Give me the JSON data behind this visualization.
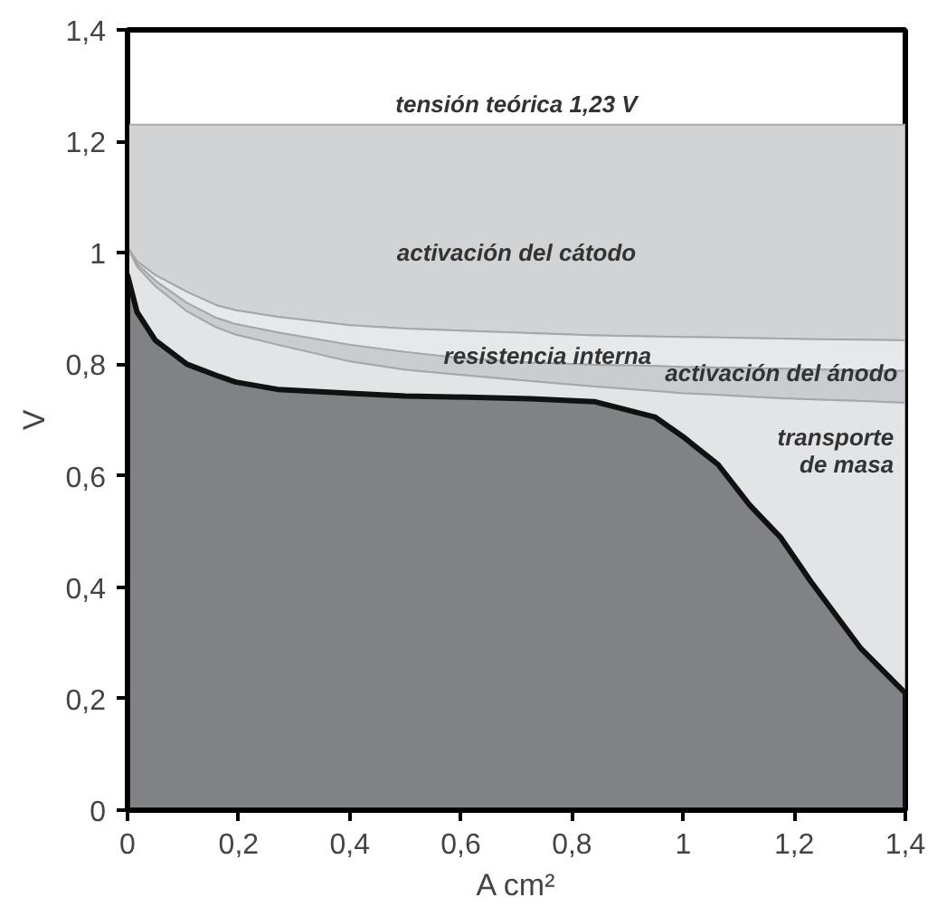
{
  "chart_data": {
    "type": "area",
    "xlabel": "A cm²",
    "ylabel": "V",
    "xlim": [
      0,
      1.4
    ],
    "ylim": [
      0,
      1.4
    ],
    "xticks": [
      0,
      {
        "value": 0.2,
        "label": "0,2"
      },
      {
        "value": 0.4,
        "label": "0,4"
      },
      {
        "value": 0.6,
        "label": "0,6"
      },
      {
        "value": 0.8,
        "label": "0,8"
      },
      1,
      {
        "value": 1.2,
        "label": "1,2"
      },
      {
        "value": 1.4,
        "label": "1,4"
      }
    ],
    "yticks": [
      0,
      {
        "value": 0.2,
        "label": "0,2"
      },
      {
        "value": 0.4,
        "label": "0,4"
      },
      {
        "value": 0.6,
        "label": "0,6"
      },
      {
        "value": 0.8,
        "label": "0,8"
      },
      1,
      {
        "value": 1.2,
        "label": "1,2"
      },
      {
        "value": 1.4,
        "label": "1,4"
      }
    ],
    "grid": false,
    "x": [
      0,
      0.017,
      0.05,
      0.107,
      0.16,
      0.195,
      0.27,
      0.4,
      0.5,
      0.61,
      0.725,
      0.84,
      0.95,
      1.0,
      1.063,
      1.12,
      1.175,
      1.23,
      1.32,
      1.4
    ],
    "series": [
      {
        "color": "#d2d3d5",
        "values": [
          1.23,
          1.23,
          1.23,
          1.23,
          1.23,
          1.23,
          1.23,
          1.23,
          1.23,
          1.23,
          1.23,
          1.23,
          1.23,
          1.23,
          1.23,
          1.23,
          1.23,
          1.23,
          1.23,
          1.23
        ]
      },
      {
        "color": "#e7e8e9",
        "values": [
          1.01,
          0.985,
          0.96,
          0.93,
          0.906,
          0.897,
          0.885,
          0.87,
          0.864,
          0.86,
          0.856,
          0.852,
          0.85,
          0.849,
          0.848,
          0.847,
          0.846,
          0.845,
          0.844,
          0.843
        ]
      },
      {
        "color": "#cbcccf",
        "values": [
          1.01,
          0.98,
          0.95,
          0.91,
          0.883,
          0.872,
          0.857,
          0.835,
          0.822,
          0.81,
          0.803,
          0.799,
          0.797,
          0.795,
          0.794,
          0.793,
          0.792,
          0.791,
          0.789,
          0.788
        ]
      },
      {
        "color": "#e3e4e6",
        "values": [
          1.01,
          0.975,
          0.94,
          0.895,
          0.866,
          0.853,
          0.835,
          0.805,
          0.79,
          0.78,
          0.77,
          0.76,
          0.752,
          0.748,
          0.745,
          0.742,
          0.739,
          0.737,
          0.734,
          0.731
        ]
      },
      {
        "color": "#808285",
        "values": [
          0.96,
          0.894,
          0.843,
          0.8,
          0.78,
          0.768,
          0.755,
          0.748,
          0.743,
          0.741,
          0.738,
          0.733,
          0.705,
          0.67,
          0.62,
          0.547,
          0.49,
          0.41,
          0.29,
          0.21
        ]
      }
    ],
    "annotations": [
      "tensión teórica 1,23 V",
      "activación del cátodo",
      "resistencia interna",
      "activación del ánodo",
      "transporte\nde masa"
    ]
  }
}
